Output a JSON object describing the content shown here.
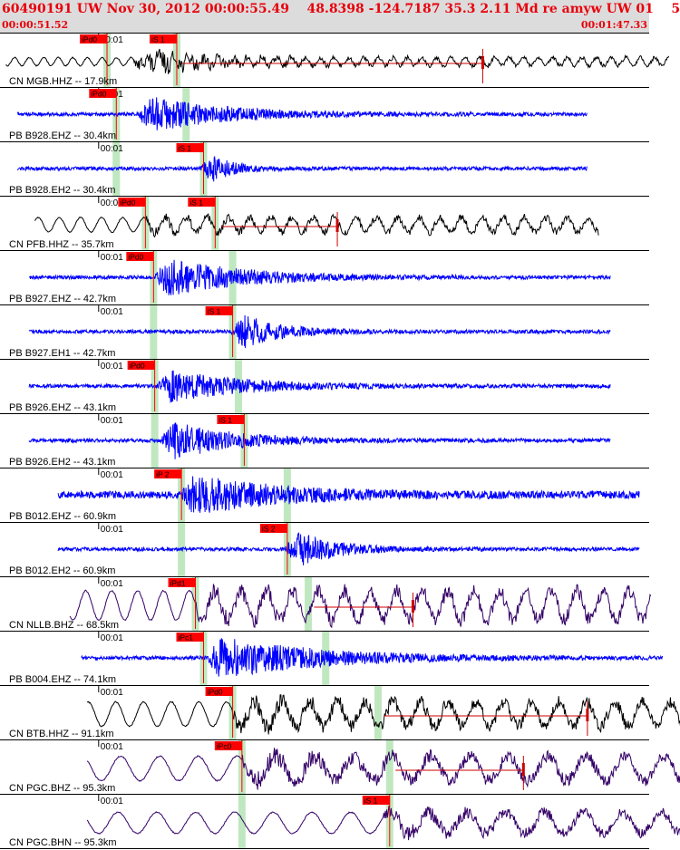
{
  "header": {
    "title": "60490191 UW Nov 30, 2012 00:00:55.49    48.8398 -124.7187 35.3 2.11 Md re amyw UW 01    5",
    "window_start": "00:00:51.52",
    "window_end": "00:01:47.33",
    "tick_label": "00:01"
  },
  "colors": {
    "header_bg": "#dcdcdc",
    "title_text": "#e8000b",
    "pick_flag": "#ff0000",
    "pick_band": "#c0e8c0",
    "coda_line": "#cc0000"
  },
  "chart_data": {
    "type": "line",
    "title": "60490191 UW Nov 30, 2012 00:00:55.49",
    "xlim": [
      "00:00:51.52",
      "00:01:47.33"
    ],
    "xtick": "00:01",
    "traces": [
      {
        "label": "CN MGB.HHZ -- 17.9km",
        "color": "#000000",
        "style": "long",
        "start": 0.5,
        "end": 57.5,
        "p": 9.2,
        "s": 15.2,
        "p_label": "iPd0",
        "s_label": "iS 1",
        "onset": 11.5,
        "sig_end": 31.0,
        "amp_bg": 5,
        "amp_peak": 26,
        "freq": 0.8,
        "coda_end": 41.5
      },
      {
        "label": "PB B928.EHZ -- 30.4km",
        "color": "#0000ff",
        "style": "hf",
        "start": 1.5,
        "end": 50.5,
        "p": 10.0,
        "s": 16.0,
        "p_label": "iPd0",
        "s_label": "",
        "onset": 11.8,
        "sig_end": 32.0,
        "amp_bg": 2,
        "amp_peak": 25,
        "freq": 12
      },
      {
        "label": "PB B928.EH2 -- 30.4km",
        "color": "#0000ff",
        "style": "hf",
        "start": 1.5,
        "end": 50.5,
        "p": 10.0,
        "s": 17.5,
        "p_label": "",
        "s_label": "iS 1",
        "onset": 17.2,
        "sig_end": 23.5,
        "amp_bg": 2,
        "amp_peak": 25,
        "freq": 12
      },
      {
        "label": "CN PFB.HHZ -- 35.7km",
        "color": "#000000",
        "style": "long",
        "start": 3.0,
        "end": 51.5,
        "p": 12.5,
        "s": 18.5,
        "p_label": "iPd0",
        "s_label": "iS 1",
        "onset": 12.5,
        "sig_end": 24.5,
        "amp_bg": 9,
        "amp_peak": 14,
        "freq": 0.55,
        "coda_end": 29.0
      },
      {
        "label": "PB B927.EHZ -- 42.7km",
        "color": "#0000ff",
        "style": "hf",
        "start": 2.5,
        "end": 52.5,
        "p": 13.2,
        "s": 20.0,
        "p_label": "iPd0",
        "s_label": "",
        "onset": 13.3,
        "sig_end": 34.0,
        "amp_bg": 2,
        "amp_peak": 26,
        "freq": 12
      },
      {
        "label": "PB B927.EH1 -- 42.7km",
        "color": "#0000ff",
        "style": "hf",
        "start": 2.5,
        "end": 52.5,
        "p": 13.2,
        "s": 20.0,
        "p_label": "",
        "s_label": "iS 1",
        "onset": 19.8,
        "sig_end": 30.0,
        "amp_bg": 2,
        "amp_peak": 28,
        "freq": 12
      },
      {
        "label": "PB B926.EHZ -- 43.1km",
        "color": "#0000ff",
        "style": "hf",
        "start": 2.5,
        "end": 52.5,
        "p": 13.3,
        "s": 20.5,
        "p_label": "iPd0",
        "s_label": "",
        "onset": 13.5,
        "sig_end": 34.0,
        "amp_bg": 2,
        "amp_peak": 22,
        "freq": 12
      },
      {
        "label": "PB B926.EH2 -- 43.1km",
        "color": "#0000ff",
        "style": "hf",
        "start": 2.5,
        "end": 52.5,
        "p": 13.3,
        "s": 21.0,
        "p_label": "",
        "s_label": "iS 1",
        "onset": 13.8,
        "sig_end": 31.0,
        "amp_bg": 2,
        "amp_peak": 26,
        "freq": 12
      },
      {
        "label": "PB B012.EHZ -- 60.9km",
        "color": "#0000ff",
        "style": "hf",
        "start": 5.0,
        "end": 55.0,
        "p": 15.6,
        "s": 24.7,
        "p_label": "iP 2",
        "s_label": "",
        "onset": 15.6,
        "sig_end": 38.0,
        "amp_bg": 4,
        "amp_peak": 28,
        "freq": 12
      },
      {
        "label": "PB B012.EH2 -- 60.9km",
        "color": "#0000ff",
        "style": "hf",
        "start": 5.0,
        "end": 55.0,
        "p": 15.6,
        "s": 24.7,
        "p_label": "",
        "s_label": "iS 2",
        "onset": 24.5,
        "sig_end": 35.0,
        "amp_bg": 2,
        "amp_peak": 28,
        "freq": 12
      },
      {
        "label": "CN NLLB.BHZ -- 68.5km",
        "color": "#330066",
        "style": "long",
        "start": 6.0,
        "end": 56.0,
        "p": 16.8,
        "s": 26.5,
        "p_label": "iPd1",
        "s_label": "",
        "onset": 16.8,
        "sig_end": 37.5,
        "amp_bg": 18,
        "amp_peak": 22,
        "freq": 0.45,
        "coda_end": 35.5
      },
      {
        "label": "PB B004.EHZ -- 74.1km",
        "color": "#0000ff",
        "style": "hf",
        "start": 7.0,
        "end": 57.0,
        "p": 17.5,
        "s": 28.0,
        "p_label": "iPc1",
        "s_label": "",
        "onset": 17.8,
        "sig_end": 45.0,
        "amp_bg": 2,
        "amp_peak": 28,
        "freq": 12
      },
      {
        "label": "CN BTB.HHZ -- 91.1km",
        "color": "#000000",
        "style": "long",
        "start": 7.5,
        "end": 59.5,
        "p": 20.0,
        "s": 32.5,
        "p_label": "iPd0",
        "s_label": "",
        "onset": 20.0,
        "sig_end": 48.0,
        "amp_bg": 15,
        "amp_peak": 22,
        "freq": 0.42,
        "coda_end": 50.5
      },
      {
        "label": "CN PGC.BHZ -- 95.3km",
        "color": "#330066",
        "style": "long",
        "start": 7.5,
        "end": 60.0,
        "p": 20.8,
        "s": 33.5,
        "p_label": "iPc0",
        "s_label": "",
        "onset": 20.8,
        "sig_end": 48.0,
        "amp_bg": 15,
        "amp_peak": 24,
        "freq": 0.3,
        "coda_end": 45.0
      },
      {
        "label": "CN PGC.BHN -- 95.3km",
        "color": "#330066",
        "style": "long",
        "start": 7.5,
        "end": 60.0,
        "p": 20.8,
        "s": 33.5,
        "p_label": "",
        "s_label": "iS 1",
        "onset": 33.0,
        "sig_end": 50.0,
        "amp_bg": 13,
        "amp_peak": 22,
        "freq": 0.3
      }
    ]
  }
}
